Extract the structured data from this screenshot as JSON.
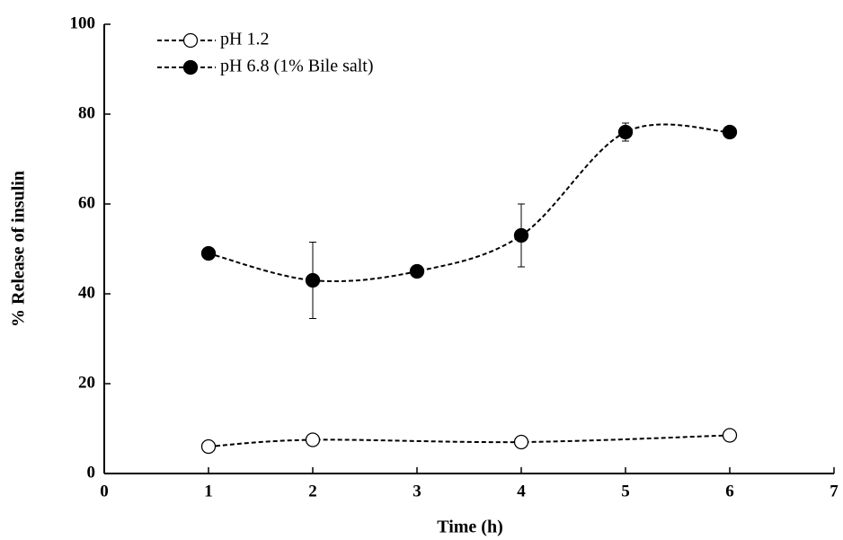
{
  "chart_data": {
    "type": "line",
    "xlabel": "Time (h)",
    "ylabel": "% Release of insulin",
    "xlim": [
      0,
      7
    ],
    "xticks": [
      0,
      1,
      2,
      3,
      4,
      5,
      6,
      7
    ],
    "ylim": [
      0,
      100
    ],
    "yticks": [
      0,
      20,
      40,
      60,
      80,
      100
    ],
    "legend": "upper left",
    "series": [
      {
        "name": "pH 1.2",
        "marker": "open",
        "color": "#000000",
        "x": [
          1,
          2,
          4,
          6
        ],
        "values": [
          6,
          7.5,
          7,
          8.5
        ],
        "errors": [
          1,
          0.8,
          0.5,
          1.2
        ]
      },
      {
        "name": "pH 6.8 (1% Bile salt)",
        "marker": "filled",
        "color": "#000000",
        "x": [
          1,
          2,
          3,
          4,
          5,
          6
        ],
        "values": [
          49,
          43,
          45,
          53,
          76,
          76
        ],
        "errors": [
          0.5,
          8.5,
          0.5,
          7,
          2,
          0.5
        ]
      }
    ]
  }
}
